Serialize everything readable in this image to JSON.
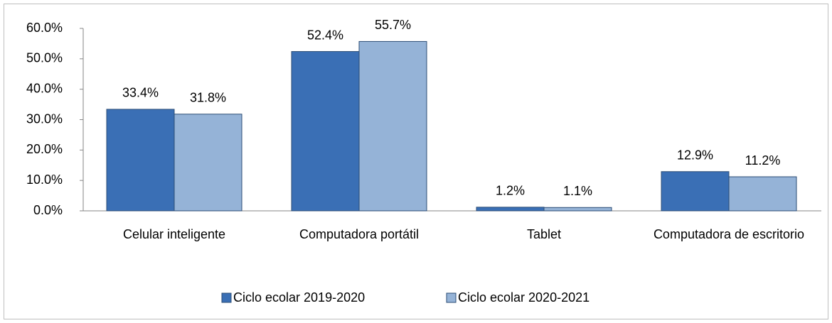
{
  "chart_data": {
    "type": "bar",
    "categories": [
      "Celular inteligente",
      "Computadora portátil",
      "Tablet",
      "Computadora de escritorio"
    ],
    "series": [
      {
        "name": "Ciclo ecolar 2019-2020",
        "color": "#3a6fb5",
        "values": [
          33.4,
          52.4,
          1.2,
          12.9
        ],
        "value_labels": [
          "33.4%",
          "52.4%",
          "1.2%",
          "12.9%"
        ]
      },
      {
        "name": "Ciclo ecolar 2020-2021",
        "color": "#95b3d7",
        "values": [
          31.8,
          55.7,
          1.1,
          11.2
        ],
        "value_labels": [
          "31.8%",
          "55.7%",
          "1.1%",
          "11.2%"
        ]
      }
    ],
    "ylim": [
      0,
      60
    ],
    "yticks": [
      {
        "value": 0,
        "label": "0.0%"
      },
      {
        "value": 10,
        "label": "10.0%"
      },
      {
        "value": 20,
        "label": "20.0%"
      },
      {
        "value": 30,
        "label": "30.0%"
      },
      {
        "value": 40,
        "label": "40.0%"
      },
      {
        "value": 50,
        "label": "50.0%"
      },
      {
        "value": 60,
        "label": "60.0%"
      }
    ],
    "grid": false,
    "legend": "bottom"
  }
}
